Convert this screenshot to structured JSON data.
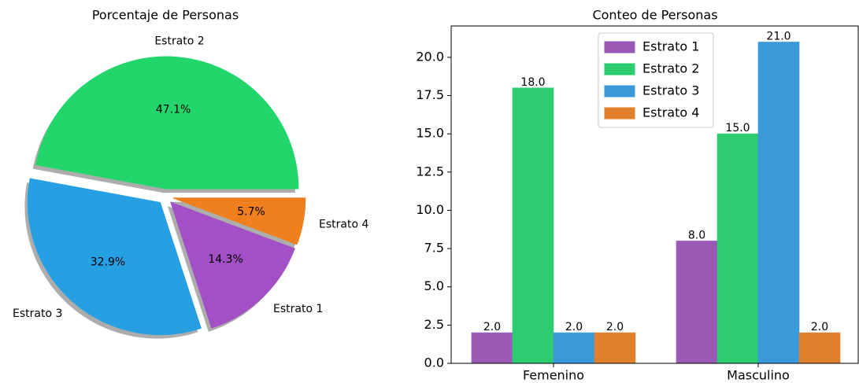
{
  "chart_data": [
    {
      "type": "pie",
      "title": "Porcentaje de Personas",
      "categories": [
        "Estrato 2",
        "Estrato 3",
        "Estrato 1",
        "Estrato 4"
      ],
      "values": [
        47.1,
        32.9,
        14.3,
        5.7
      ],
      "value_labels": [
        "47.1%",
        "32.9%",
        "14.3%",
        "5.7%"
      ],
      "colors": [
        "#22d66c",
        "#279fe3",
        "#a34fc6",
        "#f07f1e"
      ],
      "shadow": true
    },
    {
      "type": "bar",
      "title": "Conteo de Personas",
      "categories": [
        "Femenino",
        "Masculino"
      ],
      "series": [
        {
          "name": "Estrato 1",
          "color": "#9b59b6",
          "values": [
            2,
            8
          ],
          "value_labels": [
            "2.0",
            "8.0"
          ]
        },
        {
          "name": "Estrato 2",
          "color": "#2ecc71",
          "values": [
            18,
            15
          ],
          "value_labels": [
            "18.0",
            "15.0"
          ]
        },
        {
          "name": "Estrato 3",
          "color": "#3a9ad9",
          "values": [
            2,
            21
          ],
          "value_labels": [
            "2.0",
            "21.0"
          ]
        },
        {
          "name": "Estrato 4",
          "color": "#e07f2c",
          "values": [
            2,
            2
          ],
          "value_labels": [
            "2.0",
            "2.0"
          ]
        }
      ],
      "ylim": [
        0,
        22.05
      ],
      "yticks": [
        {
          "value": 0,
          "label": "0.0"
        },
        {
          "value": 2.5,
          "label": "2.5"
        },
        {
          "value": 5,
          "label": "5.0"
        },
        {
          "value": 7.5,
          "label": "7.5"
        },
        {
          "value": 10,
          "label": "10.0"
        },
        {
          "value": 12.5,
          "label": "12.5"
        },
        {
          "value": 15,
          "label": "15.0"
        },
        {
          "value": 17.5,
          "label": "17.5"
        },
        {
          "value": 20,
          "label": "20.0"
        }
      ],
      "legend": "upper center"
    }
  ]
}
